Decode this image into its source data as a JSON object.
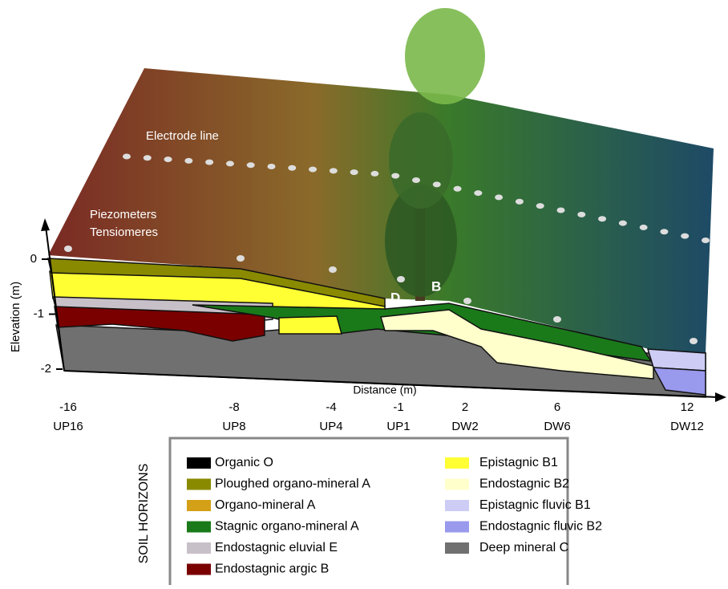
{
  "annotations": {
    "electrode_line": "Electrode line",
    "piezometers": "Piezometers",
    "tensiometers": "Tensiomeres",
    "d": "D",
    "b": "B"
  },
  "axes": {
    "y_label": "Elevation (m)",
    "y_ticks": [
      0,
      -1,
      -2
    ],
    "x_label": "Distance (m)",
    "x_ticks": [
      -16,
      -8,
      -4,
      -1,
      2,
      6,
      12
    ],
    "stations": [
      "UP16",
      "UP8",
      "UP4",
      "UP1",
      "DW2",
      "DW6",
      "DW12"
    ]
  },
  "legend": {
    "title": "SOIL HORIZONS",
    "items": [
      {
        "name": "Organic O",
        "color": "#000000"
      },
      {
        "name": "Ploughed organo-mineral A",
        "color": "#8a8a00"
      },
      {
        "name": "Organo-mineral A",
        "color": "#d4a017"
      },
      {
        "name": "Stagnic organo-mineral A",
        "color": "#1a7a1a"
      },
      {
        "name": "Endostagnic eluvial E",
        "color": "#c8c0c8"
      },
      {
        "name": "Endostagnic argic B",
        "color": "#7a0000"
      },
      {
        "name": "Epistagnic B1",
        "color": "#ffff33"
      },
      {
        "name": "Endostagnic B2",
        "color": "#ffffcc"
      },
      {
        "name": "Epistagnic fluvic B1",
        "color": "#ccccf5"
      },
      {
        "name": "Endostagnic fluvic B2",
        "color": "#9999ee"
      },
      {
        "name": "Deep mineral C",
        "color": "#707070"
      }
    ]
  }
}
